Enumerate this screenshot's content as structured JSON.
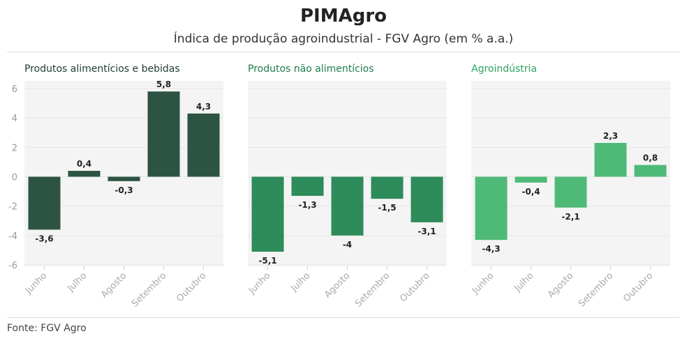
{
  "title": "PIMAgro",
  "subtitle": "Índica de produção agroindustrial - FGV Agro (em % a.a.)",
  "source": "Fonte: FGV Agro",
  "chart_data": [
    {
      "type": "bar",
      "title": "Produtos alimentícios e bebidas",
      "color": "#2d5443",
      "title_color": "#1f3d2d",
      "categories": [
        "Junho",
        "Julho",
        "Agosto",
        "Setembro",
        "Outubro"
      ],
      "values": [
        -3.6,
        0.4,
        -0.3,
        5.8,
        4.3
      ],
      "labels": [
        "-3,6",
        "0,4",
        "-0,3",
        "5,8",
        "4,3"
      ],
      "ylim": [
        -6,
        6
      ],
      "yticks": [
        6,
        4,
        2,
        0,
        -2,
        -4,
        -6
      ],
      "ytick_labels": [
        "6",
        "4",
        "2",
        "0",
        "-2",
        "-4",
        "-6"
      ],
      "grid": true
    },
    {
      "type": "bar",
      "title": "Produtos não alimentícios",
      "color": "#2e8b5a",
      "title_color": "#1e7f4a",
      "categories": [
        "Junho",
        "Julho",
        "Agosto",
        "Setembro",
        "Outubro"
      ],
      "values": [
        -5.1,
        -1.3,
        -4,
        -1.5,
        -3.1
      ],
      "labels": [
        "-5,1",
        "-1,3",
        "-4",
        "-1,5",
        "-3,1"
      ],
      "ylim": [
        -6,
        6
      ],
      "grid": true
    },
    {
      "type": "bar",
      "title": "Agroindústria",
      "color": "#4fba78",
      "title_color": "#2fa460",
      "categories": [
        "Junho",
        "Julho",
        "Agosto",
        "Setembro",
        "Outubro"
      ],
      "values": [
        -4.3,
        -0.4,
        -2.1,
        2.3,
        0.8
      ],
      "labels": [
        "-4,3",
        "-0,4",
        "-2,1",
        "2,3",
        "0,8"
      ],
      "ylim": [
        -6,
        6
      ],
      "grid": true
    }
  ]
}
